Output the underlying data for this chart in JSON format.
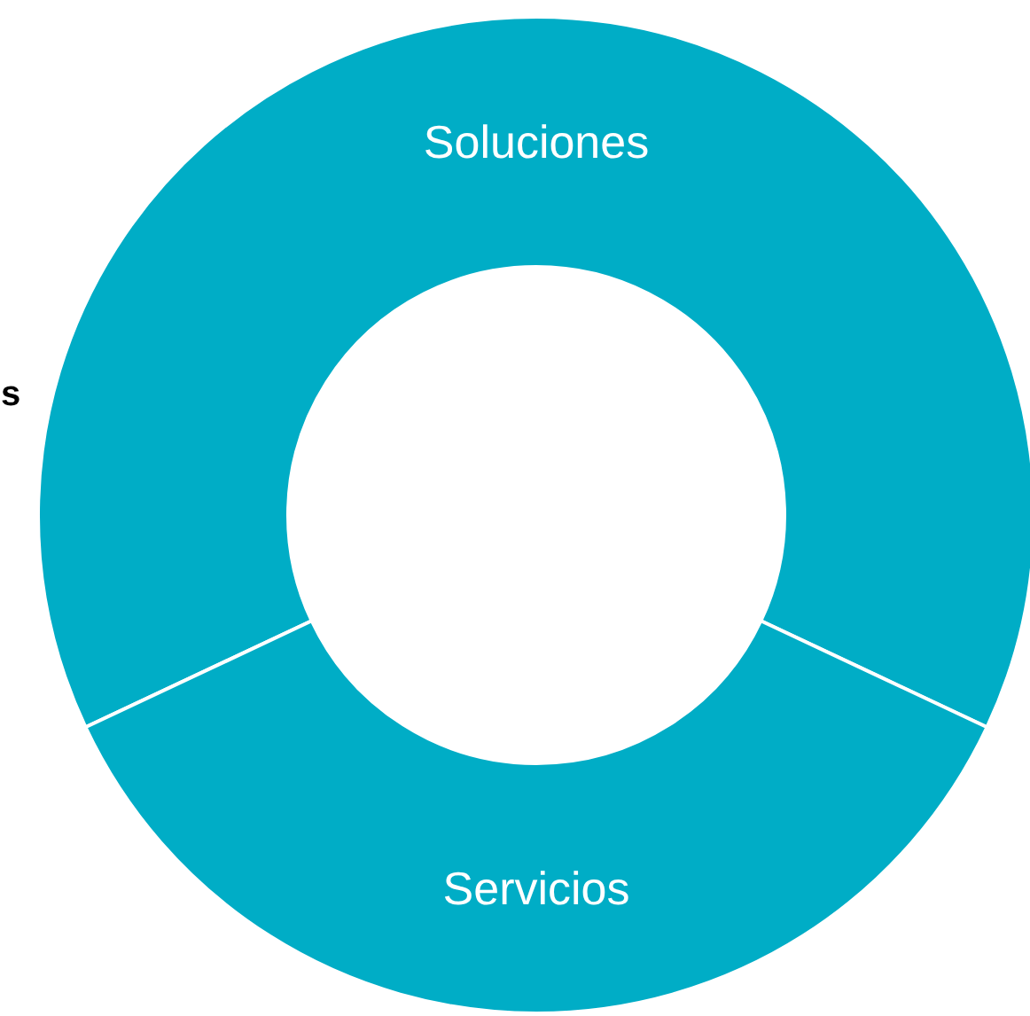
{
  "chart_data": {
    "type": "donut",
    "categories": [
      "Soluciones",
      "Servicios"
    ],
    "values": [
      64,
      36
    ],
    "colors": [
      "#00adc6",
      "#00adc6"
    ],
    "annotations": [
      "s"
    ]
  }
}
